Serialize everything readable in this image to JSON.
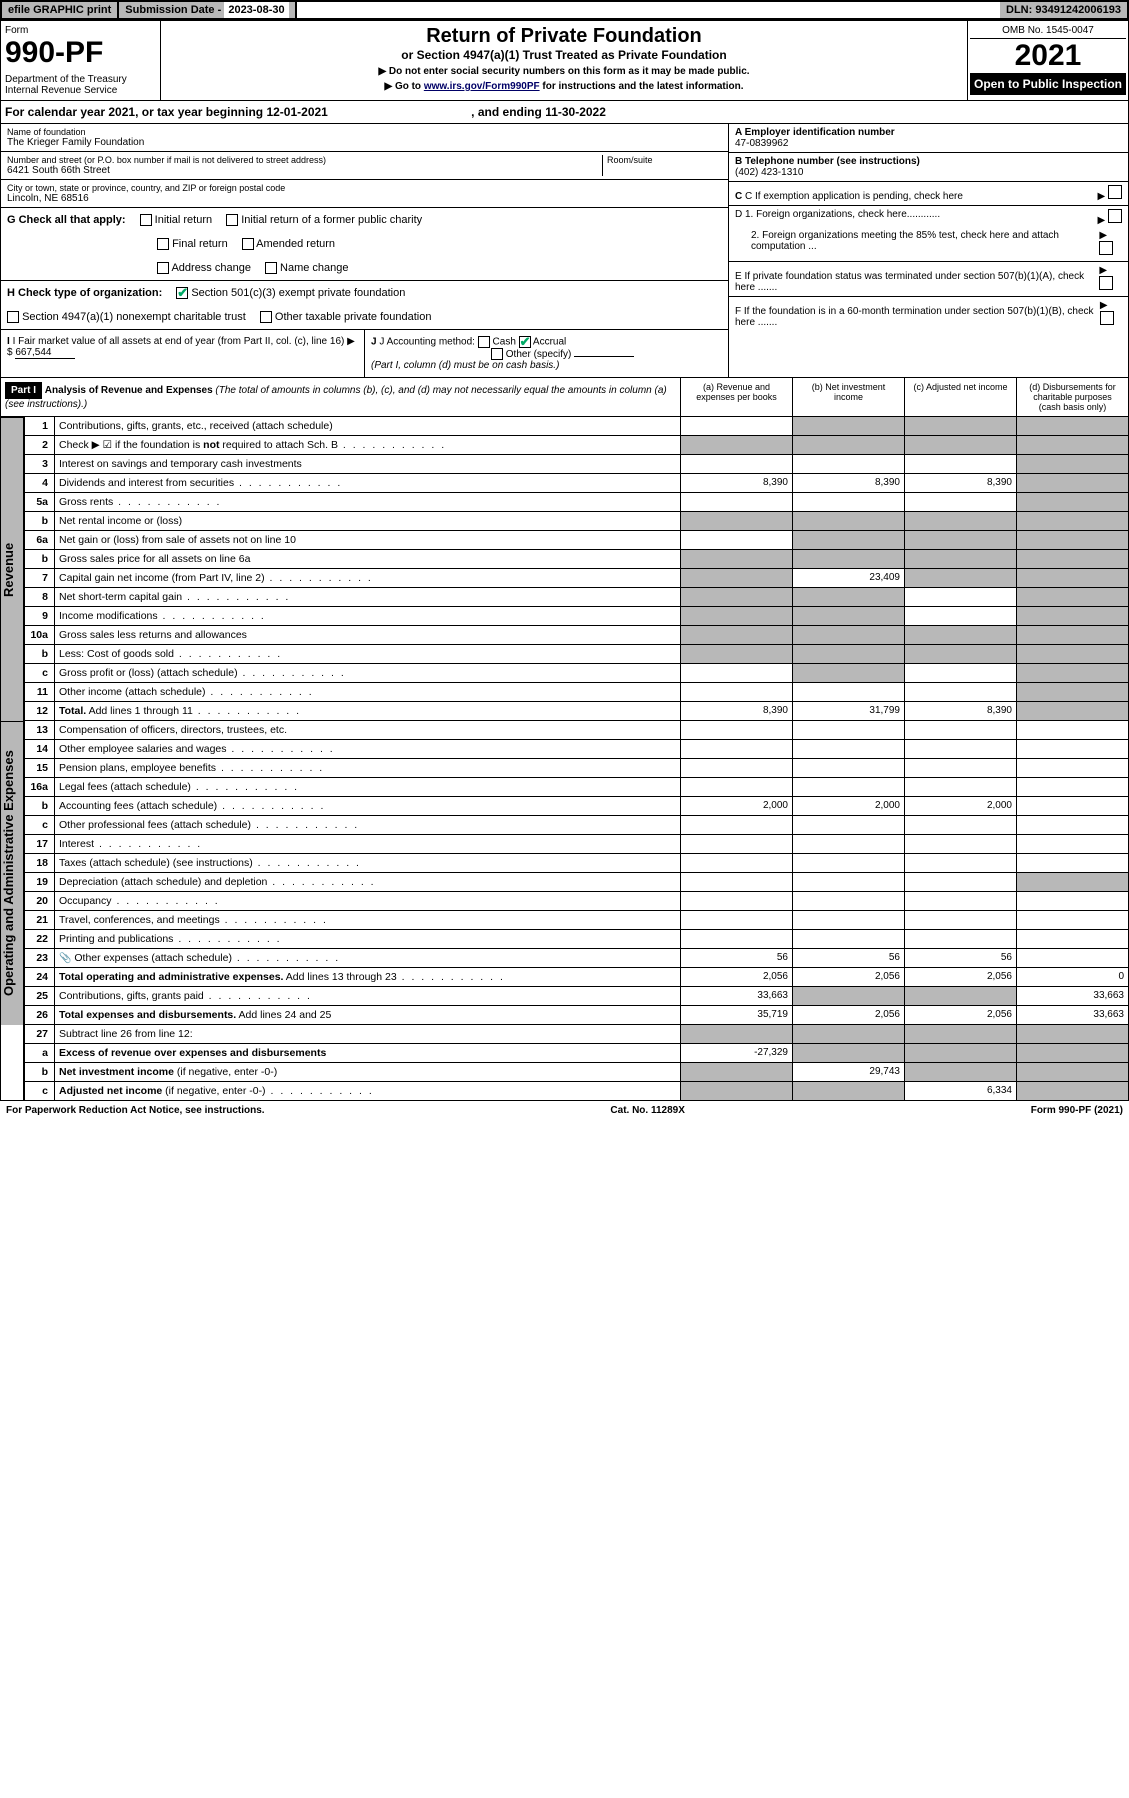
{
  "top": {
    "efile": "efile GRAPHIC print",
    "sub_label": "Submission Date - ",
    "sub_date": "2023-08-30",
    "dln": "DLN: 93491242006193"
  },
  "header": {
    "form_word": "Form",
    "form_no": "990-PF",
    "dept": "Department of the Treasury\nInternal Revenue Service",
    "title": "Return of Private Foundation",
    "subtitle": "or Section 4947(a)(1) Trust Treated as Private Foundation",
    "instr1": "▶ Do not enter social security numbers on this form as it may be made public.",
    "instr2_pre": "▶ Go to ",
    "instr2_link": "www.irs.gov/Form990PF",
    "instr2_post": " for instructions and the latest information.",
    "omb": "OMB No. 1545-0047",
    "year": "2021",
    "inspect": "Open to Public Inspection"
  },
  "cal": {
    "text_pre": "For calendar year 2021, or tax year beginning ",
    "begin": "12-01-2021",
    "mid": " , and ending ",
    "end": "11-30-2022"
  },
  "id": {
    "name_label": "Name of foundation",
    "name": "The Krieger Family Foundation",
    "addr_label": "Number and street (or P.O. box number if mail is not delivered to street address)",
    "addr": "6421 South 66th Street",
    "room_label": "Room/suite",
    "city_label": "City or town, state or province, country, and ZIP or foreign postal code",
    "city": "Lincoln, NE  68516",
    "a_label": "A Employer identification number",
    "a_val": "47-0839962",
    "b_label": "B Telephone number (see instructions)",
    "b_val": "(402) 423-1310",
    "c_label": "C If exemption application is pending, check here",
    "d1": "D 1. Foreign organizations, check here............",
    "d2": "2. Foreign organizations meeting the 85% test, check here and attach computation ...",
    "e_label": "E  If private foundation status was terminated under section 507(b)(1)(A), check here .......",
    "f_label": "F  If the foundation is in a 60-month termination under section 507(b)(1)(B), check here .......",
    "g_label": "G Check all that apply:",
    "g_opts": [
      "Initial return",
      "Final return",
      "Address change",
      "Initial return of a former public charity",
      "Amended return",
      "Name change"
    ],
    "h_label": "H Check type of organization:",
    "h1": "Section 501(c)(3) exempt private foundation",
    "h2": "Section 4947(a)(1) nonexempt charitable trust",
    "h3": "Other taxable private foundation",
    "i_label": "I Fair market value of all assets at end of year (from Part II, col. (c), line 16) ▶ $",
    "i_val": "667,544",
    "j_label": "J Accounting method:",
    "j_cash": "Cash",
    "j_accrual": "Accrual",
    "j_other": "Other (specify)",
    "j_note": "(Part I, column (d) must be on cash basis.)"
  },
  "part1": {
    "label": "Part I",
    "title": "Analysis of Revenue and Expenses",
    "note": "(The total of amounts in columns (b), (c), and (d) may not necessarily equal the amounts in column (a) (see instructions).)",
    "col_a": "(a)   Revenue and expenses per books",
    "col_b": "(b)   Net investment income",
    "col_c": "(c)   Adjusted net income",
    "col_d": "(d)  Disbursements for charitable purposes (cash basis only)"
  },
  "side": {
    "rev": "Revenue",
    "exp": "Operating and Administrative Expenses"
  },
  "rows": [
    {
      "n": "1",
      "t": "Contributions, gifts, grants, etc., received (attach schedule)",
      "a": "",
      "b": "",
      "c": "",
      "d": "",
      "sb": true,
      "sc": true,
      "sd": true
    },
    {
      "n": "2",
      "t": "Check ▶ ☑ if the foundation is <b>not</b> required to attach Sch. B",
      "dots": true,
      "a": "",
      "b": "",
      "c": "",
      "d": "",
      "sa": true,
      "sb": true,
      "sc": true,
      "sd": true
    },
    {
      "n": "3",
      "t": "Interest on savings and temporary cash investments",
      "a": "",
      "b": "",
      "c": "",
      "d": "",
      "sd": true
    },
    {
      "n": "4",
      "t": "Dividends and interest from securities",
      "dots": true,
      "a": "8,390",
      "b": "8,390",
      "c": "8,390",
      "d": "",
      "sd": true
    },
    {
      "n": "5a",
      "t": "Gross rents",
      "dots": true,
      "a": "",
      "b": "",
      "c": "",
      "d": "",
      "sd": true
    },
    {
      "n": "b",
      "t": "Net rental income or (loss)",
      "a": "",
      "b": "",
      "c": "",
      "d": "",
      "sa": true,
      "sb": true,
      "sc": true,
      "sd": true
    },
    {
      "n": "6a",
      "t": "Net gain or (loss) from sale of assets not on line 10",
      "a": "",
      "b": "",
      "c": "",
      "d": "",
      "sb": true,
      "sc": true,
      "sd": true
    },
    {
      "n": "b",
      "t": "Gross sales price for all assets on line 6a",
      "a": "",
      "b": "",
      "c": "",
      "d": "",
      "sa": true,
      "sb": true,
      "sc": true,
      "sd": true
    },
    {
      "n": "7",
      "t": "Capital gain net income (from Part IV, line 2)",
      "dots": true,
      "a": "",
      "b": "23,409",
      "c": "",
      "d": "",
      "sa": true,
      "sc": true,
      "sd": true
    },
    {
      "n": "8",
      "t": "Net short-term capital gain",
      "dots": true,
      "a": "",
      "b": "",
      "c": "",
      "d": "",
      "sa": true,
      "sb": true,
      "sd": true
    },
    {
      "n": "9",
      "t": "Income modifications",
      "dots": true,
      "a": "",
      "b": "",
      "c": "",
      "d": "",
      "sa": true,
      "sb": true,
      "sd": true
    },
    {
      "n": "10a",
      "t": "Gross sales less returns and allowances",
      "a": "",
      "b": "",
      "c": "",
      "d": "",
      "sa": true,
      "sb": true,
      "sc": true,
      "sd": true
    },
    {
      "n": "b",
      "t": "Less: Cost of goods sold",
      "dots": true,
      "a": "",
      "b": "",
      "c": "",
      "d": "",
      "sa": true,
      "sb": true,
      "sc": true,
      "sd": true
    },
    {
      "n": "c",
      "t": "Gross profit or (loss) (attach schedule)",
      "dots": true,
      "a": "",
      "b": "",
      "c": "",
      "d": "",
      "sb": true,
      "sd": true
    },
    {
      "n": "11",
      "t": "Other income (attach schedule)",
      "dots": true,
      "a": "",
      "b": "",
      "c": "",
      "d": "",
      "sd": true
    },
    {
      "n": "12",
      "t": "<b>Total.</b> Add lines 1 through 11",
      "dots": true,
      "a": "8,390",
      "b": "31,799",
      "c": "8,390",
      "d": "",
      "sd": true
    }
  ],
  "exp_rows": [
    {
      "n": "13",
      "t": "Compensation of officers, directors, trustees, etc.",
      "a": "",
      "b": "",
      "c": "",
      "d": ""
    },
    {
      "n": "14",
      "t": "Other employee salaries and wages",
      "dots": true,
      "a": "",
      "b": "",
      "c": "",
      "d": ""
    },
    {
      "n": "15",
      "t": "Pension plans, employee benefits",
      "dots": true,
      "a": "",
      "b": "",
      "c": "",
      "d": ""
    },
    {
      "n": "16a",
      "t": "Legal fees (attach schedule)",
      "dots": true,
      "a": "",
      "b": "",
      "c": "",
      "d": ""
    },
    {
      "n": "b",
      "t": "Accounting fees (attach schedule)",
      "dots": true,
      "a": "2,000",
      "b": "2,000",
      "c": "2,000",
      "d": ""
    },
    {
      "n": "c",
      "t": "Other professional fees (attach schedule)",
      "dots": true,
      "a": "",
      "b": "",
      "c": "",
      "d": ""
    },
    {
      "n": "17",
      "t": "Interest",
      "dots": true,
      "a": "",
      "b": "",
      "c": "",
      "d": ""
    },
    {
      "n": "18",
      "t": "Taxes (attach schedule) (see instructions)",
      "dots": true,
      "a": "",
      "b": "",
      "c": "",
      "d": ""
    },
    {
      "n": "19",
      "t": "Depreciation (attach schedule) and depletion",
      "dots": true,
      "a": "",
      "b": "",
      "c": "",
      "d": "",
      "sd": true
    },
    {
      "n": "20",
      "t": "Occupancy",
      "dots": true,
      "a": "",
      "b": "",
      "c": "",
      "d": ""
    },
    {
      "n": "21",
      "t": "Travel, conferences, and meetings",
      "dots": true,
      "a": "",
      "b": "",
      "c": "",
      "d": ""
    },
    {
      "n": "22",
      "t": "Printing and publications",
      "dots": true,
      "a": "",
      "b": "",
      "c": "",
      "d": ""
    },
    {
      "n": "23",
      "t": "Other expenses (attach schedule)",
      "dots": true,
      "icn": "📎",
      "a": "56",
      "b": "56",
      "c": "56",
      "d": ""
    },
    {
      "n": "24",
      "t": "<b>Total operating and administrative expenses.</b> Add lines 13 through 23",
      "dots": true,
      "a": "2,056",
      "b": "2,056",
      "c": "2,056",
      "d": "0"
    },
    {
      "n": "25",
      "t": "Contributions, gifts, grants paid",
      "dots": true,
      "a": "33,663",
      "b": "",
      "c": "",
      "d": "33,663",
      "sb": true,
      "sc": true
    },
    {
      "n": "26",
      "t": "<b>Total expenses and disbursements.</b> Add lines 24 and 25",
      "a": "35,719",
      "b": "2,056",
      "c": "2,056",
      "d": "33,663"
    }
  ],
  "rows27": [
    {
      "n": "27",
      "t": "Subtract line 26 from line 12:",
      "a": "",
      "b": "",
      "c": "",
      "d": "",
      "sa": true,
      "sb": true,
      "sc": true,
      "sd": true
    },
    {
      "n": "a",
      "t": "<b>Excess of revenue over expenses and disbursements</b>",
      "a": "-27,329",
      "b": "",
      "c": "",
      "d": "",
      "sb": true,
      "sc": true,
      "sd": true
    },
    {
      "n": "b",
      "t": "<b>Net investment income</b> (if negative, enter -0-)",
      "a": "",
      "b": "29,743",
      "c": "",
      "d": "",
      "sa": true,
      "sc": true,
      "sd": true
    },
    {
      "n": "c",
      "t": "<b>Adjusted net income</b> (if negative, enter -0-)",
      "dots": true,
      "a": "",
      "b": "",
      "c": "6,334",
      "d": "",
      "sa": true,
      "sb": true,
      "sd": true
    }
  ],
  "footer": {
    "left": "For Paperwork Reduction Act Notice, see instructions.",
    "mid": "Cat. No. 11289X",
    "right": "Form 990-PF (2021)"
  }
}
